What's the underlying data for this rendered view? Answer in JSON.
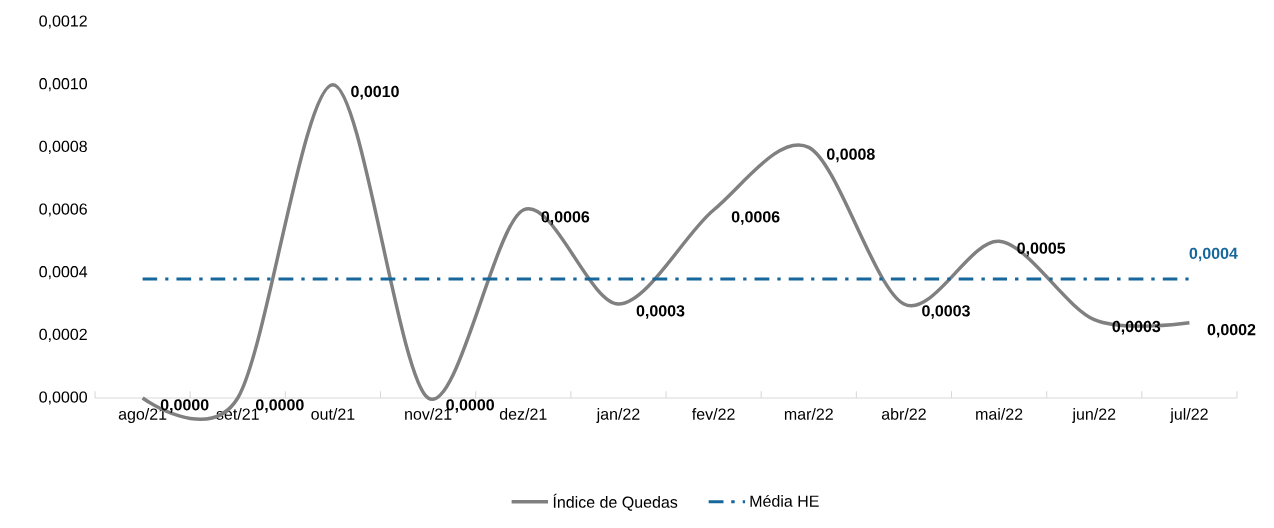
{
  "chart_data": {
    "type": "line",
    "categories": [
      "ago/21",
      "set/21",
      "out/21",
      "nov/21",
      "dez/21",
      "jan/22",
      "fev/22",
      "mar/22",
      "abr/22",
      "mai/22",
      "jun/22",
      "jul/22"
    ],
    "series": [
      {
        "name": "Índice de Quedas",
        "color": "#808080",
        "line_style": "solid",
        "values": [
          0,
          0,
          0.001,
          0,
          0.0006,
          0.0003,
          0.0006,
          0.0008,
          0.0003,
          0.0005,
          0.00025,
          0.00024
        ],
        "value_labels": [
          "0,0000",
          "0,0000",
          "0,0010",
          "0,0000",
          "0,0006",
          "0,0003",
          "0,0006",
          "0,0008",
          "0,0003",
          "0,0005",
          "0,0003",
          "0,0002"
        ]
      },
      {
        "name": "Média HE",
        "color": "#17679c",
        "line_style": "dashdot",
        "values": [
          0.00038,
          0.00038,
          0.00038,
          0.00038,
          0.00038,
          0.00038,
          0.00038,
          0.00038,
          0.00038,
          0.00038,
          0.00038,
          0.00038
        ],
        "value_labels": [
          null,
          null,
          null,
          null,
          null,
          null,
          null,
          null,
          null,
          null,
          null,
          "0,0004"
        ]
      }
    ],
    "ylim": [
      0,
      0.0012
    ],
    "yticks": [
      {
        "value": 0,
        "label": "0,0000"
      },
      {
        "value": 0.0002,
        "label": "0,0002"
      },
      {
        "value": 0.0004,
        "label": "0,0004"
      },
      {
        "value": 0.0006,
        "label": "0,0006"
      },
      {
        "value": 0.0008,
        "label": "0,0008"
      },
      {
        "value": 0.001,
        "label": "0,0010"
      },
      {
        "value": 0.0012,
        "label": "0,0012"
      }
    ],
    "grid": false,
    "legend": "bottom"
  }
}
